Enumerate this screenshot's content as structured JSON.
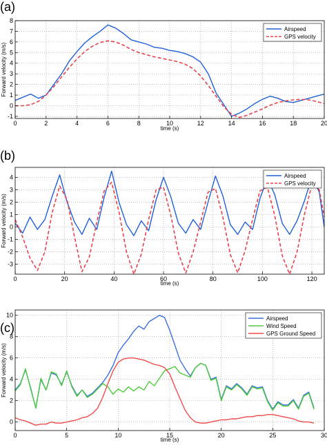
{
  "chart_data": [
    {
      "panel_label": "(a)",
      "type": "line",
      "xlabel": "time (s)",
      "ylabel": "Forward velocity (m/s)",
      "xlim": [
        0,
        20
      ],
      "ylim": [
        -1.2,
        8
      ],
      "xticks": [
        0,
        2,
        4,
        6,
        8,
        10,
        12,
        14,
        16,
        18,
        20
      ],
      "yticks": [
        -1,
        0,
        1,
        2,
        3,
        4,
        5,
        6,
        7,
        8
      ],
      "grid": true,
      "legend_position": "top-right",
      "series": [
        {
          "name": "Airspeed",
          "color": "#1f5fd6",
          "style": "solid",
          "x": [
            0,
            0.5,
            1,
            1.5,
            2,
            2.5,
            3,
            3.5,
            4,
            4.5,
            5,
            5.5,
            6,
            6.5,
            7,
            7.5,
            8,
            8.5,
            9,
            9.5,
            10,
            10.5,
            11,
            11.5,
            12,
            12.5,
            13,
            13.5,
            14,
            14.5,
            15,
            15.5,
            16,
            16.5,
            17,
            17.5,
            18,
            18.5,
            19,
            19.5,
            20
          ],
          "y": [
            0.5,
            0.8,
            1.1,
            0.7,
            1.0,
            2.0,
            3.0,
            4.2,
            5.1,
            5.9,
            6.5,
            7.0,
            7.6,
            7.3,
            6.8,
            6.2,
            6.0,
            5.8,
            5.5,
            5.4,
            5.2,
            5.1,
            4.9,
            4.6,
            4.1,
            3.0,
            1.2,
            0.1,
            -1.0,
            -0.7,
            -0.3,
            0.2,
            0.6,
            0.9,
            0.7,
            0.4,
            0.3,
            0.5,
            0.7,
            0.9,
            1.1
          ]
        },
        {
          "name": "GPS velocity",
          "color": "#e8424b",
          "style": "dashed",
          "x": [
            0,
            0.5,
            1,
            1.5,
            2,
            2.5,
            3,
            3.5,
            4,
            4.5,
            5,
            5.5,
            6,
            6.5,
            7,
            7.5,
            8,
            8.5,
            9,
            9.5,
            10,
            10.5,
            11,
            11.5,
            12,
            12.5,
            13,
            13.5,
            14,
            14.5,
            15,
            15.5,
            16,
            16.5,
            17,
            17.5,
            18,
            18.5,
            19,
            19.5,
            20
          ],
          "y": [
            0,
            0,
            0.1,
            0.4,
            1.0,
            1.8,
            2.7,
            3.6,
            4.4,
            5.1,
            5.6,
            5.95,
            6.1,
            6.0,
            5.7,
            5.3,
            5.0,
            4.8,
            4.6,
            4.45,
            4.3,
            4.15,
            3.9,
            3.5,
            2.8,
            1.9,
            0.9,
            -0.1,
            -0.8,
            -1.1,
            -0.9,
            -0.6,
            -0.3,
            0.05,
            0.3,
            0.45,
            0.55,
            0.6,
            0.55,
            0.4,
            0.2
          ]
        }
      ]
    },
    {
      "panel_label": "(b)",
      "type": "line",
      "xlabel": "time (s)",
      "ylabel": "Forward velocity (m/s)",
      "xlim": [
        0,
        125
      ],
      "ylim": [
        -3.8,
        4.8
      ],
      "xticks": [
        0,
        20,
        40,
        60,
        80,
        100,
        120
      ],
      "yticks": [
        -3,
        -2,
        -1,
        0,
        1,
        2,
        3,
        4
      ],
      "grid": true,
      "legend_position": "top-right",
      "series": [
        {
          "name": "Airspeed",
          "color": "#1f5fd6",
          "style": "solid",
          "x": [
            0,
            3,
            6,
            9,
            12,
            15,
            18,
            21,
            24,
            27,
            30,
            33,
            36,
            39,
            42,
            45,
            48,
            51,
            54,
            57,
            60,
            63,
            66,
            69,
            72,
            75,
            78,
            81,
            84,
            87,
            90,
            93,
            96,
            99,
            102,
            105,
            108,
            111,
            114,
            117,
            120,
            123,
            125
          ],
          "y": [
            0.3,
            -0.5,
            0.8,
            -0.2,
            0.6,
            2.5,
            4.2,
            2.0,
            0.4,
            -0.6,
            0.7,
            -0.2,
            2.4,
            4.5,
            2.0,
            0.2,
            -0.7,
            0.5,
            -0.3,
            2.2,
            4.0,
            2.4,
            0.3,
            -0.5,
            0.6,
            -0.2,
            2.0,
            4.1,
            2.5,
            0.2,
            -0.6,
            0.4,
            -0.2,
            2.3,
            3.9,
            2.6,
            0.3,
            -0.6,
            0.5,
            2.1,
            4.0,
            2.8,
            0.0
          ]
        },
        {
          "name": "GPS velocity",
          "color": "#e8424b",
          "style": "dashed",
          "x": [
            0,
            3,
            6,
            9,
            12,
            15,
            18,
            21,
            24,
            27,
            30,
            33,
            36,
            39,
            42,
            45,
            48,
            51,
            54,
            57,
            60,
            63,
            66,
            69,
            72,
            75,
            78,
            81,
            84,
            87,
            90,
            93,
            96,
            99,
            102,
            105,
            108,
            111,
            114,
            117,
            120,
            123,
            125
          ],
          "y": [
            0.6,
            -0.8,
            -2.5,
            -3.5,
            -2.0,
            1.2,
            3.3,
            2.2,
            -0.8,
            -3.6,
            -2.4,
            0.4,
            2.9,
            3.6,
            1.2,
            -2.0,
            -3.8,
            -2.2,
            0.6,
            3.0,
            3.2,
            0.9,
            -2.1,
            -3.7,
            -2.0,
            0.4,
            2.8,
            3.1,
            0.8,
            -2.2,
            -3.7,
            -1.9,
            0.6,
            2.9,
            3.2,
            0.9,
            -2.3,
            -3.8,
            -2.0,
            1.0,
            3.4,
            3.0,
            0.8
          ]
        }
      ]
    },
    {
      "panel_label": "(c)",
      "type": "line",
      "xlabel": "time (s)",
      "ylabel": "Forward velocity (m/s)",
      "xlim": [
        0,
        30
      ],
      "ylim": [
        -0.8,
        10.5
      ],
      "xticks": [
        0,
        5,
        10,
        15,
        20,
        25,
        30
      ],
      "yticks": [
        0,
        2,
        4,
        6,
        8,
        10
      ],
      "grid": true,
      "legend_position": "top-right",
      "series": [
        {
          "name": "Airspeed",
          "color": "#3a6fe0",
          "style": "solid",
          "x": [
            0,
            0.5,
            1,
            1.5,
            2,
            2.5,
            3,
            3.5,
            4,
            4.5,
            5,
            5.5,
            6,
            6.5,
            7,
            7.5,
            8,
            8.5,
            9,
            9.5,
            10,
            10.5,
            11,
            11.5,
            12,
            12.5,
            13,
            13.5,
            14,
            14.5,
            15,
            15.5,
            16,
            16.5,
            17,
            17.5,
            18,
            18.5,
            19,
            19.5,
            20,
            20.5,
            21,
            21.5,
            22,
            22.5,
            23,
            23.5,
            24,
            24.5,
            25,
            25.5,
            26,
            26.5,
            27,
            27.5,
            28,
            28.5,
            29
          ],
          "y": [
            3.0,
            3.6,
            4.9,
            3.2,
            1.3,
            4.0,
            3.0,
            4.6,
            4.4,
            3.5,
            4.7,
            3.4,
            2.5,
            3.0,
            2.4,
            2.7,
            3.2,
            3.7,
            4.4,
            5.3,
            6.5,
            7.2,
            7.8,
            8.5,
            9.0,
            8.7,
            9.4,
            9.7,
            10.0,
            9.8,
            8.6,
            7.2,
            5.8,
            5.0,
            4.3,
            5.1,
            5.5,
            5.3,
            4.0,
            4.2,
            2.1,
            3.4,
            3.1,
            3.6,
            3.2,
            2.6,
            3.4,
            3.2,
            3.3,
            2.0,
            1.2,
            1.9,
            1.6,
            1.6,
            2.1,
            1.3,
            2.5,
            2.8,
            1.3
          ]
        },
        {
          "name": "Wind Speed",
          "color": "#4ccc3a",
          "style": "solid",
          "x": [
            0,
            0.5,
            1,
            1.5,
            2,
            2.5,
            3,
            3.5,
            4,
            4.5,
            5,
            5.5,
            6,
            6.5,
            7,
            7.5,
            8,
            8.5,
            9,
            9.5,
            10,
            10.5,
            11,
            11.5,
            12,
            12.5,
            13,
            13.5,
            14,
            14.5,
            15,
            15.5,
            16,
            16.5,
            17,
            17.5,
            18,
            18.5,
            19,
            19.5,
            20,
            20.5,
            21,
            21.5,
            22,
            22.5,
            23,
            23.5,
            24,
            24.5,
            25,
            25.5,
            26,
            26.5,
            27,
            27.5,
            28,
            28.5,
            29
          ],
          "y": [
            2.9,
            3.5,
            5.0,
            3.1,
            1.3,
            4.1,
            3.0,
            4.7,
            4.5,
            3.4,
            4.8,
            3.3,
            2.4,
            3.0,
            2.3,
            2.6,
            3.1,
            3.6,
            3.3,
            2.6,
            3.1,
            2.8,
            3.3,
            2.9,
            3.3,
            3.0,
            3.8,
            3.4,
            4.1,
            4.8,
            5.0,
            5.2,
            4.6,
            4.4,
            4.2,
            5.1,
            5.5,
            5.3,
            3.9,
            4.1,
            2.0,
            3.3,
            3.0,
            3.5,
            3.1,
            2.5,
            3.3,
            3.1,
            3.2,
            1.9,
            1.1,
            1.8,
            1.5,
            1.5,
            2.0,
            1.2,
            2.4,
            2.7,
            1.2
          ]
        },
        {
          "name": "GPS Ground Speed",
          "color": "#ef4a4a",
          "style": "solid",
          "x": [
            0,
            0.5,
            1,
            1.5,
            2,
            2.5,
            3,
            3.5,
            4,
            4.5,
            5,
            5.5,
            6,
            6.5,
            7,
            7.5,
            8,
            8.5,
            9,
            9.5,
            10,
            10.5,
            11,
            11.5,
            12,
            12.5,
            13,
            13.5,
            14,
            14.5,
            15,
            15.5,
            16,
            16.5,
            17,
            17.5,
            18,
            18.5,
            19,
            19.5,
            20,
            20.5,
            21,
            21.5,
            22,
            22.5,
            23,
            23.5,
            24,
            24.5,
            25,
            25.5,
            26,
            26.5,
            27,
            27.5,
            28,
            28.5,
            29
          ],
          "y": [
            0.4,
            0.2,
            0.1,
            -0.1,
            -0.3,
            -0.2,
            -0.2,
            0.0,
            -0.1,
            -0.1,
            0.0,
            0.1,
            0.2,
            0.4,
            0.5,
            0.8,
            1.3,
            2.3,
            3.6,
            4.8,
            5.6,
            5.9,
            6.0,
            6.0,
            5.9,
            5.8,
            5.6,
            5.4,
            5.3,
            5.1,
            4.5,
            3.3,
            2.2,
            1.1,
            0.4,
            0.0,
            -0.1,
            -0.1,
            0.0,
            0.1,
            0.2,
            0.2,
            0.3,
            0.3,
            0.4,
            0.5,
            0.5,
            0.6,
            0.6,
            0.7,
            0.7,
            0.6,
            0.5,
            0.4,
            0.3,
            0.1,
            0.0,
            0.0,
            -0.1
          ]
        }
      ]
    }
  ]
}
